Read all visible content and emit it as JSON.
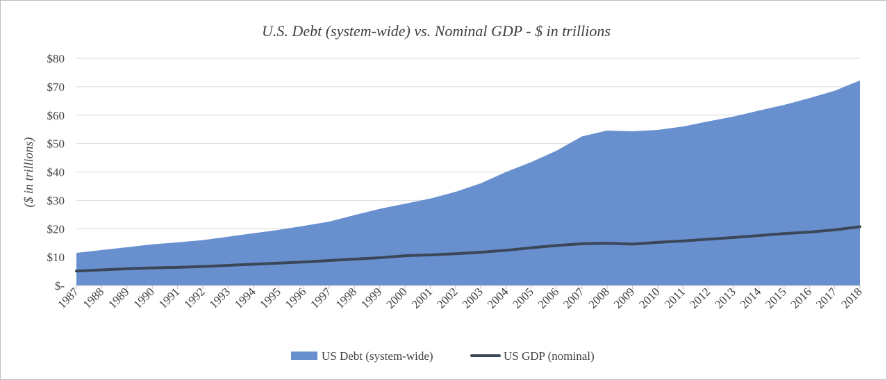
{
  "chart_data": {
    "type": "area",
    "title": "U.S. Debt (system-wide) vs. Nominal GDP - $ in trillions",
    "ylabel": "($ in trillions)",
    "xlabel": "",
    "categories": [
      "1987",
      "1988",
      "1989",
      "1990",
      "1991",
      "1992",
      "1993",
      "1994",
      "1995",
      "1996",
      "1997",
      "1998",
      "1999",
      "2000",
      "2001",
      "2002",
      "2003",
      "2004",
      "2005",
      "2006",
      "2007",
      "2008",
      "2009",
      "2010",
      "2011",
      "2012",
      "2013",
      "2014",
      "2015",
      "2016",
      "2017",
      "2018"
    ],
    "ylim": [
      0,
      80
    ],
    "yticks": [
      0,
      10,
      20,
      30,
      40,
      50,
      60,
      70,
      80
    ],
    "ytick_labels": [
      "$-",
      "$10",
      "$20",
      "$30",
      "$40",
      "$50",
      "$60",
      "$70",
      "$80"
    ],
    "grid": true,
    "legend_position": "bottom",
    "series": [
      {
        "name": "US Debt (system-wide)",
        "type": "area",
        "color": "#6890cf",
        "values": [
          11.5,
          12.5,
          13.5,
          14.5,
          15.2,
          16.0,
          17.2,
          18.4,
          19.6,
          21.0,
          22.5,
          24.8,
          27.0,
          28.8,
          30.6,
          33.0,
          36.0,
          40.0,
          43.5,
          47.5,
          52.5,
          54.6,
          54.3,
          54.8,
          56.0,
          57.8,
          59.5,
          61.6,
          63.6,
          66.0,
          68.6,
          72.2
        ]
      },
      {
        "name": "US GDP (nominal)",
        "type": "line",
        "color": "#3b4658",
        "values": [
          5.1,
          5.5,
          5.9,
          6.2,
          6.4,
          6.7,
          7.1,
          7.5,
          7.9,
          8.3,
          8.8,
          9.3,
          9.8,
          10.5,
          10.8,
          11.2,
          11.7,
          12.4,
          13.3,
          14.1,
          14.7,
          14.9,
          14.6,
          15.2,
          15.7,
          16.3,
          16.9,
          17.6,
          18.3,
          18.8,
          19.6,
          20.7
        ]
      }
    ]
  }
}
